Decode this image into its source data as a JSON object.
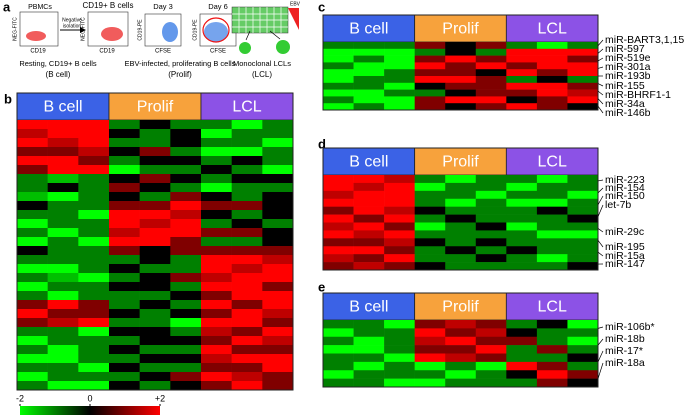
{
  "panel_a": {
    "texts": [
      "a",
      "PBMCs",
      "CD19+ B cells",
      "Negative",
      "isolation",
      "NEG-FITC",
      "CD19",
      "NEG-FITC",
      "CD19",
      "Day 3",
      "CD19-PE",
      "CFSE",
      "Day 6",
      "CD19-PE",
      "CFSE",
      "EBV",
      "Resting, CD19+ B cells",
      "(B cell)",
      "EBV-infected, proliferating B cells",
      "(Prolif)",
      "Monoclonal LCLs",
      "(LCL)"
    ]
  },
  "color_scale": {
    "min": -2,
    "max": 2,
    "low_color": "#00ff00",
    "mid_color": "#000000",
    "high_color": "#ff0000",
    "ticks": [
      -2,
      0,
      {
        "value": 2,
        "label": "+2"
      }
    ]
  },
  "heatmaps": [
    {
      "label": "b",
      "groups": [
        "B cell",
        "Prolif",
        "LCL"
      ],
      "group_colors": [
        "#3b62e6",
        "#f7a23c",
        "#8c52e6"
      ],
      "labels": [],
      "rows": [
        [
          2,
          2,
          2,
          -1,
          0,
          -1,
          -1,
          -2,
          -1
        ],
        [
          1.5,
          2,
          2,
          0,
          -1,
          0,
          -2,
          -1,
          -1
        ],
        [
          2,
          1.5,
          2,
          -1,
          -1,
          0,
          -1,
          -1,
          -2
        ],
        [
          1,
          1,
          1.5,
          0,
          1,
          -1,
          -2,
          -2,
          -1
        ],
        [
          2,
          2,
          1,
          -1,
          0,
          0,
          -1,
          0,
          -1
        ],
        [
          1,
          2,
          2,
          -2,
          -1,
          -1,
          0,
          -1,
          -2
        ],
        [
          -1,
          -1.5,
          -1,
          0,
          1,
          0,
          -1,
          0,
          0
        ],
        [
          -1,
          0,
          -1,
          1,
          0,
          -1,
          -2,
          -1,
          -1
        ],
        [
          -1.5,
          -2,
          -1,
          0,
          -1,
          1,
          0,
          -1,
          0
        ],
        [
          0,
          -1,
          -1,
          1,
          1,
          2,
          1,
          1,
          0
        ],
        [
          -1,
          -1,
          -2,
          2,
          2,
          1.5,
          0,
          -1,
          0
        ],
        [
          -2,
          -1,
          -1,
          2,
          1.5,
          2,
          -1,
          0,
          -1
        ],
        [
          -1,
          -2,
          -1,
          1.5,
          2,
          2,
          1,
          1,
          0
        ],
        [
          -2,
          -1,
          -2,
          2,
          2,
          1,
          -1,
          -1,
          0
        ],
        [
          0,
          -1,
          -1,
          1,
          0,
          1,
          1,
          1,
          1
        ],
        [
          -1,
          -1,
          -1,
          -1,
          0,
          -1,
          2,
          2,
          1.5
        ],
        [
          -2,
          -2,
          -1,
          0,
          -1,
          -1,
          2,
          1.5,
          2
        ],
        [
          -1,
          -1.5,
          -2,
          -1,
          0,
          1,
          1.5,
          2,
          2
        ],
        [
          -2,
          -1,
          -1,
          0,
          0,
          -1,
          2,
          2,
          1
        ],
        [
          -1,
          -2,
          -1,
          -1,
          -1,
          0,
          1,
          2,
          2
        ],
        [
          1,
          2,
          1,
          -1,
          0,
          -1,
          2,
          1,
          2
        ],
        [
          2,
          1,
          1,
          0,
          -1,
          0,
          1,
          2,
          1.5
        ],
        [
          1,
          1.5,
          2,
          -1,
          -1,
          -2,
          2,
          2,
          1
        ],
        [
          -1,
          -1,
          -2,
          0,
          0,
          -1,
          1.5,
          1,
          2
        ],
        [
          -2,
          -1,
          -1,
          -1,
          0,
          0,
          1,
          2,
          1.5
        ],
        [
          -1,
          -2,
          -1,
          0,
          -1,
          -1,
          2,
          1,
          1
        ],
        [
          -2,
          -2,
          -1,
          -1,
          0,
          0,
          1.5,
          2,
          2
        ],
        [
          -1,
          -1,
          -2,
          0,
          -1,
          -1,
          1,
          1,
          2
        ],
        [
          -2,
          -1,
          -1,
          -1,
          0,
          1,
          2,
          1.5,
          1
        ],
        [
          -1,
          -2,
          -2,
          0,
          -1,
          0,
          1,
          2,
          1
        ]
      ]
    },
    {
      "label": "c",
      "groups": [
        "B cell",
        "Prolif",
        "LCL"
      ],
      "group_colors": [
        "#3b62e6",
        "#f7a23c",
        "#8c52e6"
      ],
      "labels": [
        "miR-BART3,1,15",
        "miR-597",
        "miR-519e",
        "miR-301a",
        "miR-193b",
        "miR-155",
        "miR-BHRF1-1",
        "miR-34a",
        "miR-146b"
      ],
      "rows": [
        [
          -1,
          -1,
          -1,
          1,
          0,
          1,
          -1,
          -2,
          -1
        ],
        [
          -2,
          -2,
          -2,
          -1,
          0,
          -1,
          2,
          2,
          2
        ],
        [
          -2,
          -1,
          -2,
          1,
          2,
          1,
          2,
          2,
          1
        ],
        [
          -1,
          -2,
          -2,
          2,
          1,
          2,
          1,
          2,
          2
        ],
        [
          -2,
          -2,
          -1,
          1,
          1,
          0,
          2,
          1,
          2
        ],
        [
          -2,
          -1,
          -1,
          2,
          2,
          1,
          -1,
          0,
          -1
        ],
        [
          -1,
          -1,
          -2,
          0,
          1,
          1,
          2,
          2,
          1
        ],
        [
          -2,
          -2,
          -1,
          -1,
          0,
          1,
          1,
          2,
          1.5
        ],
        [
          -1,
          -2,
          -2,
          1,
          2,
          2,
          0,
          1,
          2
        ],
        [
          -2,
          -1,
          -2,
          1,
          0,
          1,
          2,
          1,
          0
        ]
      ]
    },
    {
      "label": "d",
      "groups": [
        "B cell",
        "Prolif",
        "LCL"
      ],
      "group_colors": [
        "#3b62e6",
        "#f7a23c",
        "#8c52e6"
      ],
      "labels": [
        "miR-223",
        "miR-154",
        "miR-150",
        "let-7b",
        "miR-29c",
        "miR-195",
        "miR-15a",
        "miR-147"
      ],
      "rows": [
        [
          2,
          2,
          1.5,
          -1,
          -2,
          -1,
          -1,
          -2,
          -1
        ],
        [
          2,
          1.5,
          2,
          -2,
          -1,
          -1,
          -2,
          -1,
          -1
        ],
        [
          1.5,
          2,
          2,
          -1,
          -1,
          -2,
          -1,
          -1,
          -2
        ],
        [
          2,
          2,
          2,
          -1,
          -2,
          -1,
          -2,
          -2,
          -1
        ],
        [
          1,
          2,
          1.5,
          0,
          -1,
          -1,
          -1,
          0,
          -1
        ],
        [
          2,
          1,
          2,
          -1,
          0,
          -1,
          -1,
          -1,
          0
        ],
        [
          1.5,
          2,
          1,
          -2,
          -1,
          0,
          -2,
          -1,
          -1
        ],
        [
          2,
          1.5,
          2,
          -1,
          -1,
          -1,
          -1,
          -2,
          -2
        ],
        [
          1,
          1,
          1.5,
          0,
          -1,
          0,
          -1,
          -1,
          -1
        ],
        [
          2,
          2,
          1,
          -1,
          0,
          -1,
          0,
          -1,
          -1
        ],
        [
          1.5,
          1,
          2,
          -1,
          -1,
          0,
          -1,
          -2,
          -1
        ],
        [
          1,
          1.5,
          1,
          0,
          -1,
          -1,
          -1,
          -1,
          0
        ]
      ]
    },
    {
      "label": "e",
      "groups": [
        "B cell",
        "Prolif",
        "LCL"
      ],
      "group_colors": [
        "#3b62e6",
        "#f7a23c",
        "#8c52e6"
      ],
      "labels": [
        "miR-106b*",
        "miR-18b",
        "miR-17*",
        "miR-18a"
      ],
      "rows": [
        [
          -1,
          -1,
          -2,
          1,
          1.5,
          1,
          -1,
          0,
          -2
        ],
        [
          -2,
          -1,
          -1,
          2,
          1,
          1.5,
          0,
          -1,
          -1
        ],
        [
          -1,
          -2,
          -1,
          1.5,
          2,
          1,
          1,
          -1,
          -2
        ],
        [
          -2,
          -2,
          -1,
          1,
          1,
          2,
          -1,
          1,
          -1
        ],
        [
          -1,
          -1,
          -2,
          2,
          1.5,
          1,
          -1,
          -1,
          0
        ],
        [
          -1,
          -2,
          -1,
          -2,
          -1,
          -2,
          2,
          1,
          -1
        ],
        [
          -2,
          -1,
          -1,
          -1,
          -2,
          -1,
          0,
          2,
          1
        ],
        [
          -1,
          -1,
          -2,
          -2,
          -1,
          -1,
          -1,
          1,
          0
        ]
      ]
    }
  ]
}
